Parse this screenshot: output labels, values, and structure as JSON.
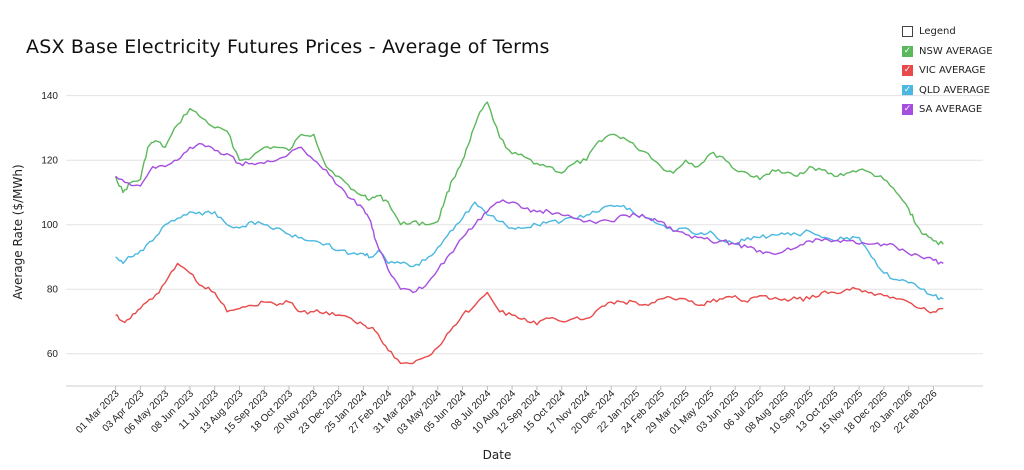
{
  "chart_data": {
    "type": "line",
    "title": "ASX Base Electricity Futures Prices - Average of Terms",
    "xlabel": "Date",
    "ylabel": "Average Rate ($/MWh)",
    "ylim": [
      50,
      143
    ],
    "yticks": [
      60,
      80,
      100,
      120,
      140
    ],
    "grid": "horizontal",
    "legend_position": "top-right",
    "legend_title": "Legend",
    "x_tick_labels": [
      "01 Mar 2023",
      "03 Apr 2023",
      "06 May 2023",
      "08 Jun 2023",
      "11 Jul 2023",
      "13 Aug 2023",
      "15 Sep 2023",
      "18 Oct 2023",
      "20 Nov 2023",
      "23 Dec 2023",
      "25 Jan 2024",
      "27 Feb 2024",
      "31 Mar 2024",
      "03 May 2024",
      "05 Jun 2024",
      "08 Jul 2024",
      "10 Aug 2024",
      "12 Sep 2024",
      "15 Oct 2024",
      "17 Nov 2024",
      "20 Dec 2024",
      "22 Jan 2025",
      "24 Feb 2025",
      "29 Mar 2025",
      "01 May 2025",
      "03 Jun 2025",
      "06 Jul 2025",
      "08 Aug 2025",
      "10 Sep 2025",
      "13 Oct 2025",
      "15 Nov 2025",
      "18 Dec 2025",
      "20 Jan 2026",
      "22 Feb 2026"
    ],
    "x_range": [
      -2,
      35
    ],
    "series": [
      {
        "name": "NSW AVERAGE",
        "color": "#5cb85c",
        "x": [
          0,
          0.3,
          0.6,
          1,
          1.3,
          1.6,
          2,
          2.5,
          3,
          3.5,
          4,
          4.5,
          5,
          5.5,
          6,
          6.5,
          7,
          7.5,
          8,
          8.5,
          9,
          9.5,
          10,
          10.3,
          10.6,
          11,
          11.5,
          12,
          12.5,
          13,
          13.3,
          13.6,
          14,
          14.3,
          14.6,
          15,
          15.5,
          16,
          16.5,
          17,
          17.5,
          18,
          18.5,
          19,
          19.5,
          20,
          20.5,
          21,
          21.5,
          22,
          22.5,
          23,
          23.5,
          24,
          24.5,
          25,
          25.5,
          26,
          26.5,
          27,
          27.5,
          28,
          28.5,
          29,
          29.5,
          30,
          30.5,
          31,
          31.5,
          32,
          32.3,
          32.6,
          33,
          33.4
        ],
        "values": [
          115,
          110,
          113,
          114,
          124,
          126,
          124,
          131,
          136,
          133,
          130,
          129,
          120,
          121,
          124,
          124,
          123,
          128,
          128,
          118,
          115,
          111,
          109,
          108,
          109,
          107,
          100,
          101,
          100,
          101,
          108,
          114,
          120,
          126,
          133,
          138,
          127,
          122,
          121,
          119,
          118,
          116,
          119,
          120,
          126,
          128,
          127,
          124,
          122,
          118,
          116,
          120,
          118,
          122,
          121,
          117,
          116,
          114,
          117,
          116,
          115,
          118,
          117,
          115,
          116,
          117,
          116,
          114,
          110,
          105,
          100,
          97,
          95,
          94
        ]
      },
      {
        "name": "VIC AVERAGE",
        "color": "#e84a4a",
        "x": [
          0,
          0.3,
          0.6,
          1,
          1.5,
          2,
          2.5,
          3,
          3.5,
          4,
          4.5,
          5,
          5.5,
          6,
          6.5,
          7,
          7.5,
          8,
          8.5,
          9,
          9.5,
          10,
          10.3,
          10.6,
          11,
          11.5,
          12,
          12.5,
          13,
          13.5,
          14,
          14.5,
          15,
          15.5,
          16,
          16.5,
          17,
          17.5,
          18,
          18.5,
          19,
          19.5,
          20,
          20.5,
          21,
          21.5,
          22,
          22.5,
          23,
          23.5,
          24,
          24.5,
          25,
          25.5,
          26,
          26.5,
          27,
          27.5,
          28,
          28.5,
          29,
          29.5,
          30,
          30.5,
          31,
          31.5,
          32,
          32.5,
          33,
          33.4
        ],
        "values": [
          72,
          70,
          71,
          74,
          77,
          82,
          88,
          85,
          81,
          79,
          73,
          74,
          75,
          76,
          75,
          76,
          73,
          73,
          73,
          72,
          71,
          69,
          68,
          66,
          61,
          57,
          57,
          59,
          62,
          67,
          72,
          75,
          79,
          73,
          72,
          71,
          69,
          71,
          70,
          71,
          71,
          74,
          76,
          76,
          76,
          75,
          77,
          77,
          77,
          75,
          76,
          77,
          78,
          76,
          78,
          77,
          77,
          77,
          77,
          79,
          79,
          80,
          80,
          79,
          78,
          77,
          76,
          74,
          73,
          74
        ]
      },
      {
        "name": "QLD AVERAGE",
        "color": "#4ab8e0",
        "x": [
          0,
          0.3,
          0.6,
          1,
          1.5,
          2,
          2.5,
          3,
          3.5,
          4,
          4.5,
          5,
          5.5,
          6,
          6.5,
          7,
          7.5,
          8,
          8.5,
          9,
          9.5,
          10,
          10.3,
          10.6,
          11,
          11.5,
          12,
          12.5,
          13,
          13.5,
          14,
          14.5,
          15,
          15.5,
          16,
          16.5,
          17,
          17.5,
          18,
          18.5,
          19,
          19.5,
          20,
          20.5,
          21,
          21.5,
          22,
          22.5,
          23,
          23.5,
          24,
          24.5,
          25,
          25.5,
          26,
          26.5,
          27,
          27.5,
          28,
          28.5,
          29,
          29.5,
          30,
          30.5,
          31,
          31.5,
          32,
          32.5,
          33,
          33.4
        ],
        "values": [
          90,
          88,
          90,
          92,
          95,
          100,
          102,
          104,
          103,
          104,
          100,
          99,
          101,
          100,
          99,
          97,
          96,
          95,
          94,
          92,
          91,
          91,
          90,
          92,
          88,
          88,
          87,
          89,
          93,
          98,
          102,
          107,
          103,
          101,
          99,
          99,
          100,
          101,
          101,
          102,
          103,
          104,
          106,
          106,
          103,
          102,
          100,
          98,
          99,
          97,
          98,
          95,
          94,
          96,
          96,
          97,
          97,
          97,
          98,
          96,
          95,
          96,
          96,
          90,
          85,
          83,
          82,
          80,
          78,
          77
        ]
      },
      {
        "name": "SA AVERAGE",
        "color": "#a64ee0",
        "x": [
          0,
          0.5,
          1,
          1.5,
          2,
          2.5,
          3,
          3.5,
          4,
          4.5,
          5,
          5.5,
          6,
          6.5,
          7,
          7.5,
          8,
          8.5,
          9,
          9.5,
          10,
          10.3,
          10.5,
          11,
          11.5,
          12,
          12.5,
          13,
          13.5,
          14,
          14.5,
          15,
          15.5,
          16,
          16.5,
          17,
          17.5,
          18,
          18.5,
          19,
          19.5,
          20,
          20.5,
          21,
          21.5,
          22,
          22.5,
          23,
          23.5,
          24,
          24.5,
          25,
          25.5,
          26,
          26.5,
          27,
          27.5,
          28,
          28.5,
          29,
          29.5,
          30,
          30.5,
          31,
          31.5,
          32,
          32.5,
          33,
          33.4
        ],
        "values": [
          115,
          113,
          112,
          118,
          118,
          120,
          124,
          125,
          123,
          122,
          119,
          119,
          119,
          120,
          122,
          124,
          120,
          117,
          112,
          108,
          105,
          101,
          95,
          86,
          80,
          79,
          81,
          86,
          91,
          96,
          100,
          104,
          107,
          107,
          105,
          104,
          104,
          103,
          102,
          101,
          101,
          101,
          103,
          103,
          102,
          101,
          98,
          97,
          96,
          95,
          95,
          94,
          93,
          92,
          91,
          92,
          93,
          95,
          95,
          95,
          95,
          94,
          94,
          94,
          93,
          91,
          90,
          89,
          88
        ]
      }
    ]
  }
}
